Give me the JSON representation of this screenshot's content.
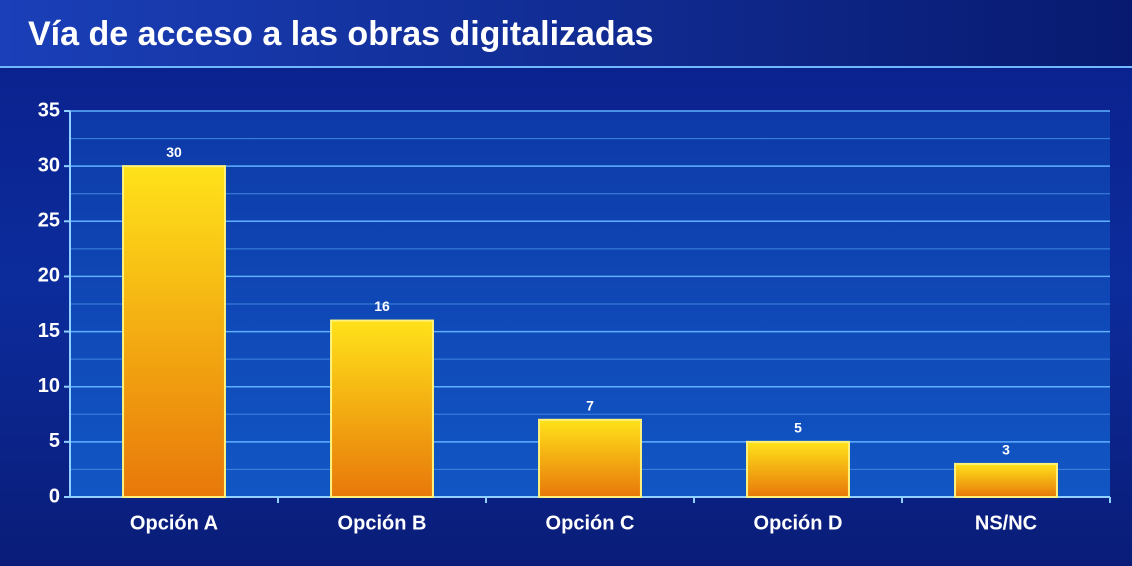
{
  "chart_data": {
    "type": "bar",
    "title": "Vía de acceso a las obras digitalizadas",
    "categories": [
      "Opción A",
      "Opción B",
      "Opción C",
      "Opción D",
      "NS/NC"
    ],
    "values": [
      30,
      16,
      7,
      5,
      3
    ],
    "color": "#f5a800",
    "ylim": [
      0,
      35
    ],
    "yticks": [
      0,
      5,
      10,
      15,
      20,
      25,
      30,
      35
    ],
    "minor_yticks": [
      2.5,
      7.5,
      12.5,
      17.5,
      22.5,
      27.5,
      32.5
    ],
    "grid": true
  }
}
